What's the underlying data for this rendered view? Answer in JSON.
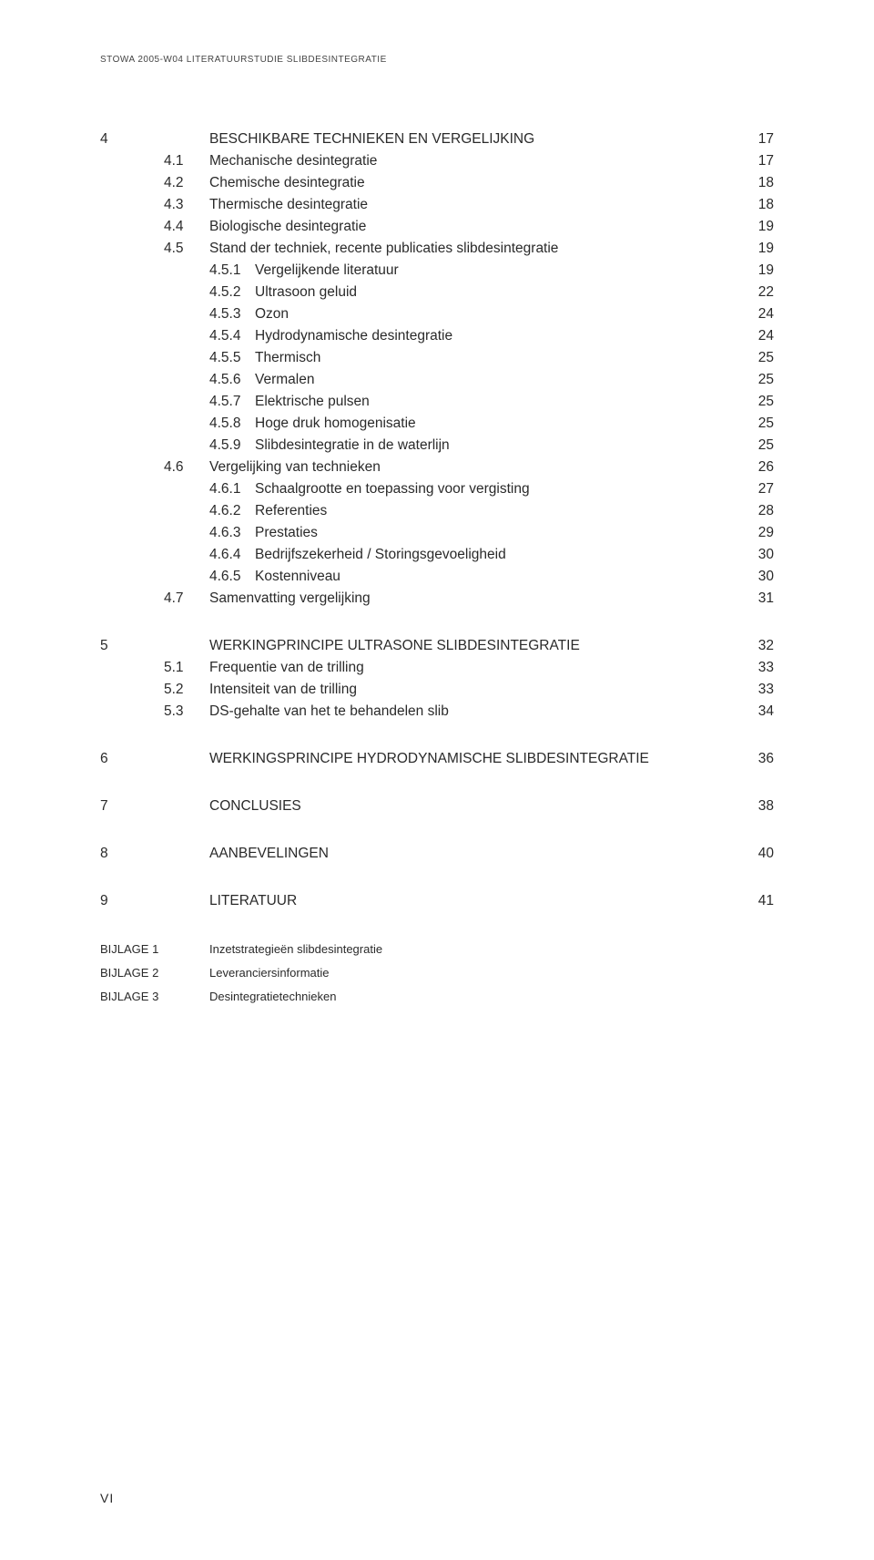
{
  "running_head": "STOWA 2005-W04 LITERATUURSTUDIE SLIBDESINTEGRATIE",
  "folio": "VI",
  "toc": [
    {
      "chap": "4",
      "title": "BESCHIKBARE TECHNIEKEN EN VERGELIJKING",
      "page": "17",
      "children": [
        {
          "sec": "4.1",
          "title": "Mechanische desintegratie",
          "page": "17"
        },
        {
          "sec": "4.2",
          "title": "Chemische desintegratie",
          "page": "18"
        },
        {
          "sec": "4.3",
          "title": "Thermische desintegratie",
          "page": "18"
        },
        {
          "sec": "4.4",
          "title": "Biologische desintegratie",
          "page": "19"
        },
        {
          "sec": "4.5",
          "title": "Stand der techniek, recente publicaties slibdesintegratie",
          "page": "19",
          "children": [
            {
              "sub": "4.5.1",
              "title": "Vergelijkende literatuur",
              "page": "19"
            },
            {
              "sub": "4.5.2",
              "title": "Ultrasoon geluid",
              "page": "22"
            },
            {
              "sub": "4.5.3",
              "title": "Ozon",
              "page": "24"
            },
            {
              "sub": "4.5.4",
              "title": "Hydrodynamische desintegratie",
              "page": "24"
            },
            {
              "sub": "4.5.5",
              "title": "Thermisch",
              "page": "25"
            },
            {
              "sub": "4.5.6",
              "title": "Vermalen",
              "page": "25"
            },
            {
              "sub": "4.5.7",
              "title": "Elektrische pulsen",
              "page": "25"
            },
            {
              "sub": "4.5.8",
              "title": "Hoge druk homogenisatie",
              "page": "25"
            },
            {
              "sub": "4.5.9",
              "title": "Slibdesintegratie in de waterlijn",
              "page": "25"
            }
          ]
        },
        {
          "sec": "4.6",
          "title": "Vergelijking van technieken",
          "page": "26",
          "children": [
            {
              "sub": "4.6.1",
              "title": "Schaalgrootte en toepassing voor vergisting",
              "page": "27"
            },
            {
              "sub": "4.6.2",
              "title": "Referenties",
              "page": "28"
            },
            {
              "sub": "4.6.3",
              "title": "Prestaties",
              "page": "29"
            },
            {
              "sub": "4.6.4",
              "title": "Bedrijfszekerheid / Storingsgevoeligheid",
              "page": "30"
            },
            {
              "sub": "4.6.5",
              "title": "Kostenniveau",
              "page": "30"
            }
          ]
        },
        {
          "sec": "4.7",
          "title": "Samenvatting vergelijking",
          "page": "31"
        }
      ]
    },
    {
      "chap": "5",
      "title": "WERKINGPRINCIPE ULTRASONE SLIBDESINTEGRATIE",
      "page": "32",
      "children": [
        {
          "sec": "5.1",
          "title": "Frequentie van de trilling",
          "page": "33"
        },
        {
          "sec": "5.2",
          "title": "Intensiteit van de trilling",
          "page": "33"
        },
        {
          "sec": "5.3",
          "title": "DS-gehalte van het te behandelen slib",
          "page": "34"
        }
      ]
    },
    {
      "chap": "6",
      "title": "WERKINGSPRINCIPE HYDRODYNAMISCHE SLIBDESINTEGRATIE",
      "page": "36"
    },
    {
      "chap": "7",
      "title": "CONCLUSIES",
      "page": "38"
    },
    {
      "chap": "8",
      "title": "AANBEVELINGEN",
      "page": "40"
    },
    {
      "chap": "9",
      "title": "LITERATUUR",
      "page": "41"
    }
  ],
  "bijlagen": [
    {
      "label": "BIJLAGE 1",
      "title": "Inzetstrategieën slibdesintegratie"
    },
    {
      "label": "BIJLAGE 2",
      "title": "Leveranciersinformatie"
    },
    {
      "label": "BIJLAGE 3",
      "title": "Desintegratietechnieken"
    }
  ]
}
